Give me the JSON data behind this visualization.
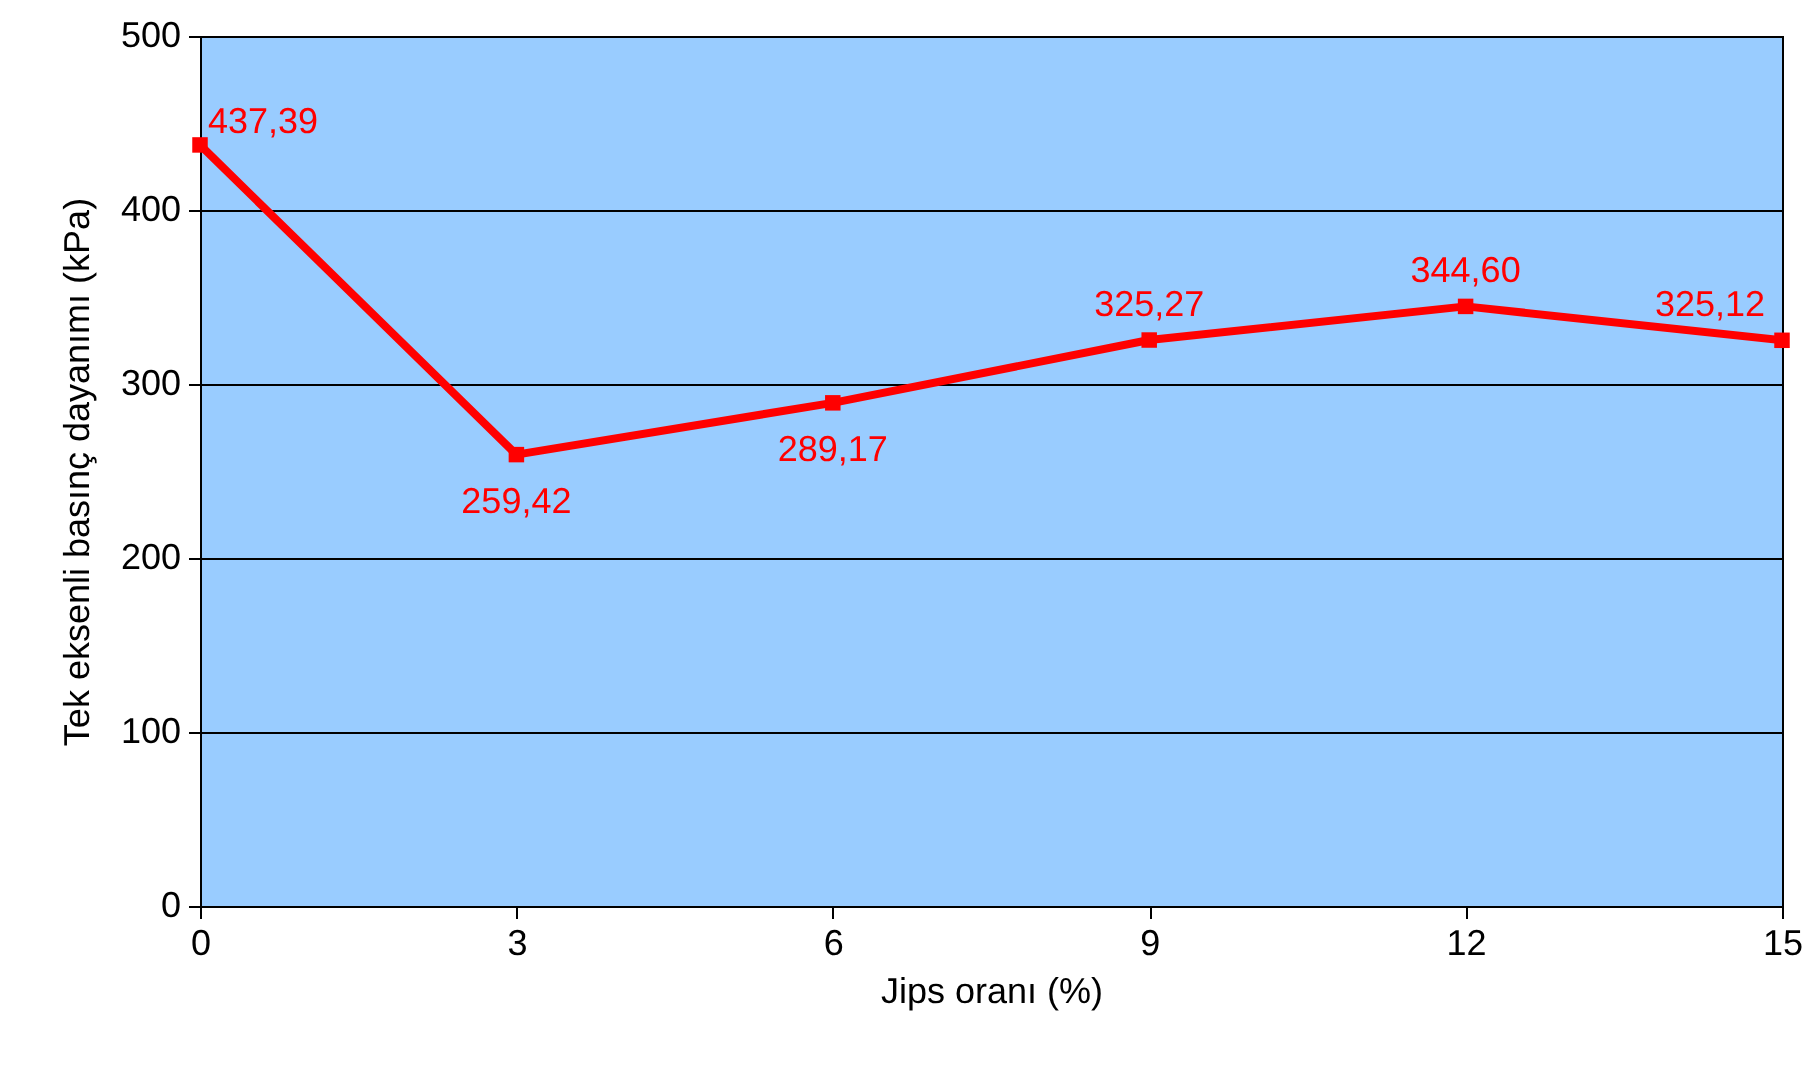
{
  "chart_data": {
    "type": "line",
    "xlabel": "Jips oranı (%)",
    "ylabel": "Tek eksenli basınç dayanımı (kPa)",
    "x": [
      0,
      3,
      6,
      9,
      12,
      15
    ],
    "series": [
      {
        "color": "#ff0000",
        "values": [
          437.39,
          259.42,
          289.17,
          325.27,
          344.6,
          325.12
        ],
        "value_labels": [
          "437,39",
          "259,42",
          "289,17",
          "325,27",
          "344,60",
          "325,12"
        ]
      }
    ],
    "xlim": [
      0,
      15
    ],
    "xticks": [
      0,
      3,
      6,
      9,
      12,
      15
    ],
    "ylim": [
      0,
      500
    ],
    "yticks": [
      0,
      100,
      200,
      300,
      400,
      500
    ],
    "grid": "y",
    "marker": "square",
    "line_style": "solid"
  }
}
